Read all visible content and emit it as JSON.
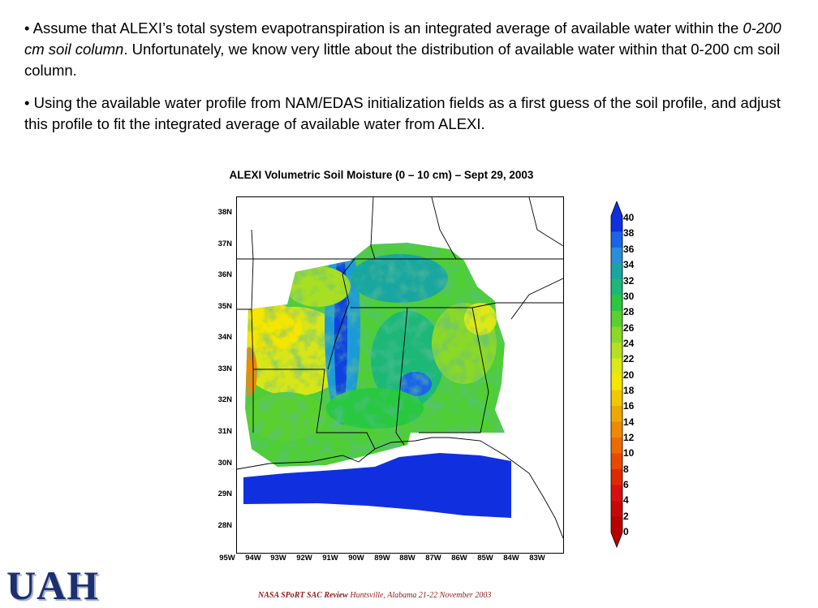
{
  "bullets": [
    {
      "symbol": "•",
      "text_before": " Assume that ALEXI’s total system evapotranspiration is an integrated average of available water within the ",
      "text_italic": "0-200 cm soil column",
      "text_after": ". Unfortunately, we know very little about the distribution of available water within that 0-200 cm soil column."
    },
    {
      "symbol": "•",
      "text": " Using the available water profile from NAM/EDAS initialization fields as a first guess of the soil profile, and adjust this profile to fit the integrated average of available water from ALEXI."
    }
  ],
  "map": {
    "title": "ALEXI Volumetric Soil Moisture (0 – 10 cm) – Sept 29, 2003",
    "lat_labels": [
      "38N",
      "37N",
      "36N",
      "35N",
      "34N",
      "33N",
      "32N",
      "31N",
      "30N",
      "29N",
      "28N"
    ],
    "lon_labels": [
      "95W",
      "94W",
      "93W",
      "92W",
      "91W",
      "90W",
      "89W",
      "88W",
      "87W",
      "86W",
      "85W",
      "84W",
      "83W"
    ]
  },
  "colorbar": {
    "labels": [
      "40",
      "38",
      "36",
      "34",
      "32",
      "30",
      "28",
      "26",
      "24",
      "22",
      "20",
      "18",
      "16",
      "14",
      "12",
      "10",
      "8",
      "6",
      "4",
      "2",
      "0"
    ],
    "colors": [
      "#1030e0",
      "#1a64e8",
      "#2a8ed8",
      "#19a6a0",
      "#1bb878",
      "#28c840",
      "#59d030",
      "#8ad828",
      "#b4e020",
      "#dce818",
      "#f4e600",
      "#f0c800",
      "#f0a800",
      "#f08800",
      "#ec6a00",
      "#e84800",
      "#e02800",
      "#d81010",
      "#c80808",
      "#b80000"
    ]
  },
  "footer": {
    "bold": "NASA SPoRT SAC Review",
    "plain": " Huntsville, Alabama ",
    "dates": "21-22 November 2003"
  },
  "logo": "UAH"
}
